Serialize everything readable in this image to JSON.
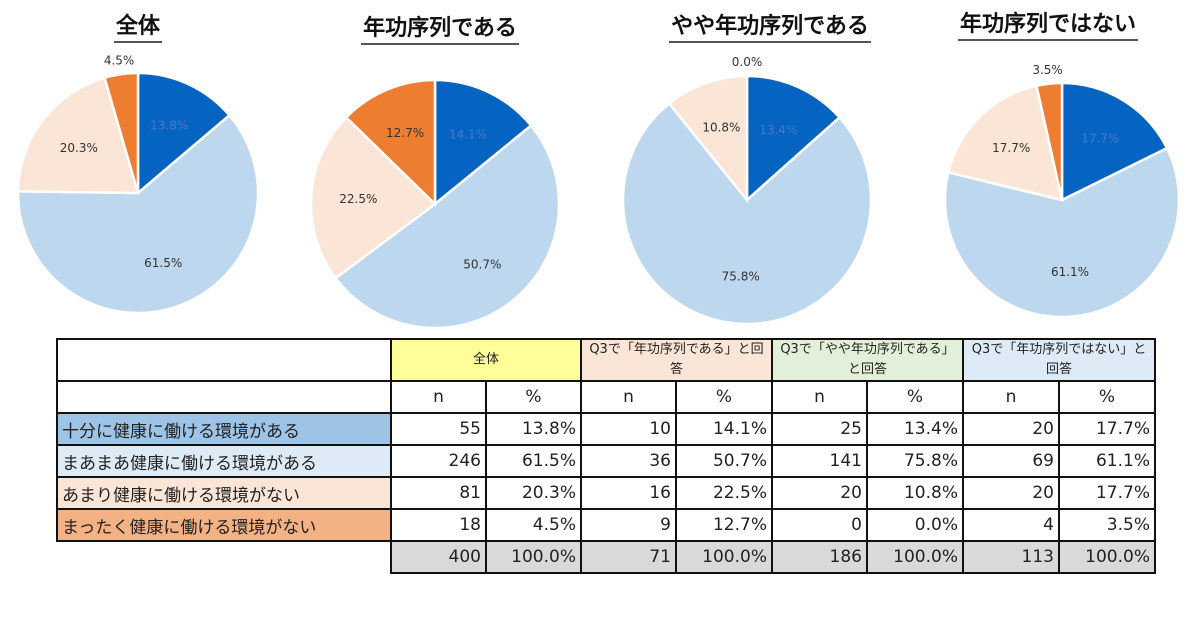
{
  "chart_data": [
    {
      "type": "pie",
      "title": "全体",
      "labels": [
        "十分に健康に働ける環境がある",
        "まあまあ健康に働ける環境がある",
        "あまり健康に働ける環境がない",
        "まったく健康に働ける環境がない"
      ],
      "values": [
        13.8,
        61.5,
        20.3,
        4.5
      ],
      "data_labels": [
        "13.8%",
        "61.5%",
        "20.3%",
        "4.5%"
      ]
    },
    {
      "type": "pie",
      "title": "年功序列である",
      "labels": [
        "十分に健康に働ける環境がある",
        "まあまあ健康に働ける環境がある",
        "あまり健康に働ける環境がない",
        "まったく健康に働ける環境がない"
      ],
      "values": [
        14.1,
        50.7,
        22.5,
        12.7
      ],
      "data_labels": [
        "14.1%",
        "50.7%",
        "22.5%",
        "12.7%"
      ]
    },
    {
      "type": "pie",
      "title": "やや年功序列である",
      "labels": [
        "十分に健康に働ける環境がある",
        "まあまあ健康に働ける環境がある",
        "あまり健康に働ける環境がない",
        "まったく健康に働ける環境がない"
      ],
      "values": [
        13.4,
        75.8,
        10.8,
        0.0
      ],
      "data_labels": [
        "13.4%",
        "75.8%",
        "10.8%",
        "0.0%"
      ]
    },
    {
      "type": "pie",
      "title": "年功序列ではない",
      "labels": [
        "十分に健康に働ける環境がある",
        "まあまあ健康に働ける環境がある",
        "あまり健康に働ける環境がない",
        "まったく健康に働ける環境がない"
      ],
      "values": [
        17.7,
        61.1,
        17.7,
        3.5
      ],
      "data_labels": [
        "17.7%",
        "61.1%",
        "17.7%",
        "3.5%"
      ]
    },
    {
      "type": "table",
      "groups": [
        "全体",
        "Q3で「年功序列である」と回答",
        "Q3で「やや年功序列である」と回答",
        "Q3で「年功序列ではない」と回答"
      ],
      "subheaders": [
        "n",
        "%"
      ],
      "rows": [
        {
          "label": "十分に健康に働ける環境がある",
          "cells": [
            "55",
            "13.8%",
            "10",
            "14.1%",
            "25",
            "13.4%",
            "20",
            "17.7%"
          ]
        },
        {
          "label": "まあまあ健康に働ける環境がある",
          "cells": [
            "246",
            "61.5%",
            "36",
            "50.7%",
            "141",
            "75.8%",
            "69",
            "61.1%"
          ]
        },
        {
          "label": "あまり健康に働ける環境がない",
          "cells": [
            "81",
            "20.3%",
            "16",
            "22.5%",
            "20",
            "10.8%",
            "20",
            "17.7%"
          ]
        },
        {
          "label": "まったく健康に働ける環境がない",
          "cells": [
            "18",
            "4.5%",
            "9",
            "12.7%",
            "0",
            "0.0%",
            "4",
            "3.5%"
          ]
        }
      ],
      "total": [
        "400",
        "100.0%",
        "71",
        "100.0%",
        "186",
        "100.0%",
        "113",
        "100.0%"
      ]
    }
  ],
  "colors": {
    "slices": [
      "#0563c1",
      "#bdd7ee",
      "#fbe5d6",
      "#ed7d31"
    ],
    "row_fills": [
      "#9dc3e6",
      "#deebf7",
      "#fbe5d6",
      "#f4b183"
    ],
    "group_fills": [
      "#ffff99",
      "#fbe5d6",
      "#e2f0d9",
      "#deebf7"
    ],
    "total_fill": "#d9d9d9",
    "label_on_dark": "#4a78c8"
  }
}
